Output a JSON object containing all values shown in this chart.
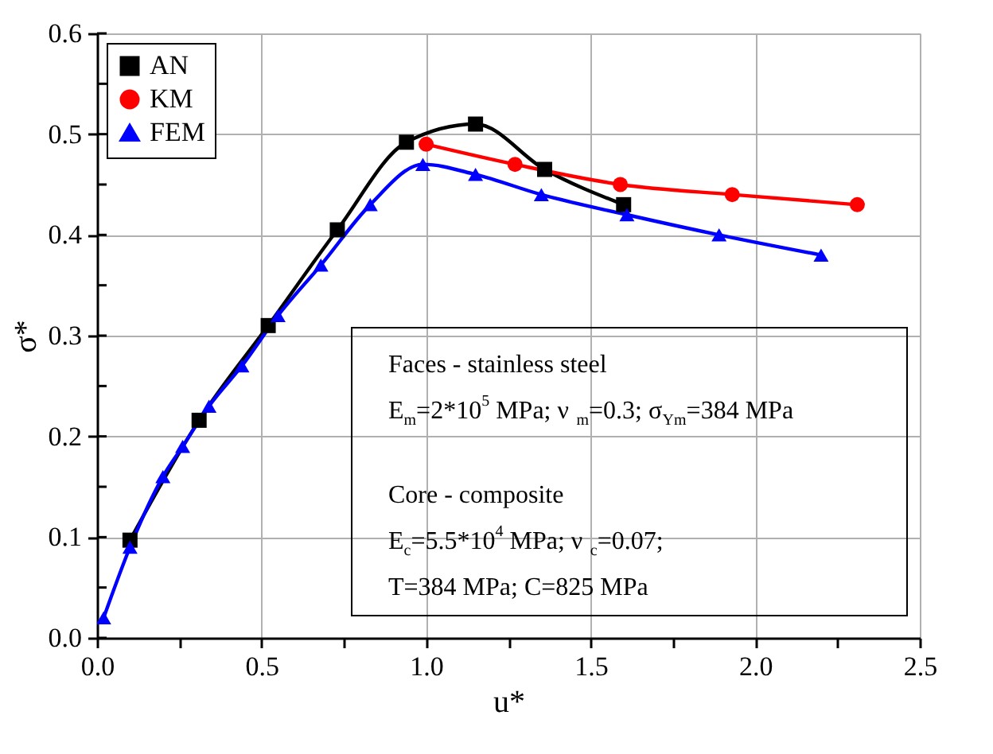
{
  "chart_data": {
    "type": "line",
    "xlabel": "u*",
    "ylabel": "σ*",
    "xlim": [
      0,
      2.5
    ],
    "xticks": [
      {
        "value": 0,
        "label": "0.0"
      },
      {
        "value": 0.25,
        "label": null
      },
      {
        "value": 0.5,
        "label": "0.5"
      },
      {
        "value": 0.75,
        "label": null
      },
      {
        "value": 1,
        "label": "1.0"
      },
      {
        "value": 1.25,
        "label": null
      },
      {
        "value": 1.5,
        "label": "1.5"
      },
      {
        "value": 1.75,
        "label": null
      },
      {
        "value": 2,
        "label": "2.0"
      },
      {
        "value": 2.25,
        "label": null
      },
      {
        "value": 2.5,
        "label": "2.5"
      }
    ],
    "ylim": [
      0,
      0.6
    ],
    "yticks": [
      {
        "value": 0,
        "label": "0.0"
      },
      {
        "value": 0.05,
        "label": null
      },
      {
        "value": 0.1,
        "label": "0.1"
      },
      {
        "value": 0.15,
        "label": null
      },
      {
        "value": 0.2,
        "label": "0.2"
      },
      {
        "value": 0.25,
        "label": null
      },
      {
        "value": 0.3,
        "label": "0.3"
      },
      {
        "value": 0.35,
        "label": null
      },
      {
        "value": 0.4,
        "label": "0.4"
      },
      {
        "value": 0.45,
        "label": null
      },
      {
        "value": 0.5,
        "label": "0.5"
      },
      {
        "value": 0.55,
        "label": null
      },
      {
        "value": 0.6,
        "label": "0.6"
      }
    ],
    "grid": true,
    "legend": "top left",
    "line_style": "solid",
    "series": [
      {
        "name": "AN",
        "color": "#000000",
        "marker": "square",
        "x": [
          0.1,
          0.31,
          0.52,
          0.73,
          0.94,
          1.15,
          1.36,
          1.6
        ],
        "values": [
          0.097,
          0.216,
          0.31,
          0.405,
          0.492,
          0.51,
          0.465,
          0.43
        ]
      },
      {
        "name": "KM",
        "color": "#ff0000",
        "marker": "circle",
        "x": [
          1.0,
          1.27,
          1.59,
          1.93,
          2.31
        ],
        "values": [
          0.49,
          0.47,
          0.45,
          0.44,
          0.43
        ]
      },
      {
        "name": "FEM",
        "color": "#0000ff",
        "marker": "triangle",
        "x": [
          0.02,
          0.1,
          0.2,
          0.26,
          0.34,
          0.44,
          0.55,
          0.68,
          0.83,
          0.99,
          1.15,
          1.35,
          1.61,
          1.89,
          2.2
        ],
        "values": [
          0.02,
          0.09,
          0.16,
          0.19,
          0.23,
          0.27,
          0.32,
          0.37,
          0.43,
          0.47,
          0.46,
          0.44,
          0.42,
          0.4,
          0.38
        ]
      }
    ],
    "annotations": [
      "Faces - stainless steel",
      "E$_{m}$=2*10$^{5}$ MPa;  ν$_{m}$=0.3; σ$_{Ym}$=384 MPa",
      "Core - composite",
      "E$_{c}$=5.5*10$^{4}$ MPa;  ν$_{c}$=0.07;",
      "T=384 MPa; C=825 MPa"
    ]
  }
}
